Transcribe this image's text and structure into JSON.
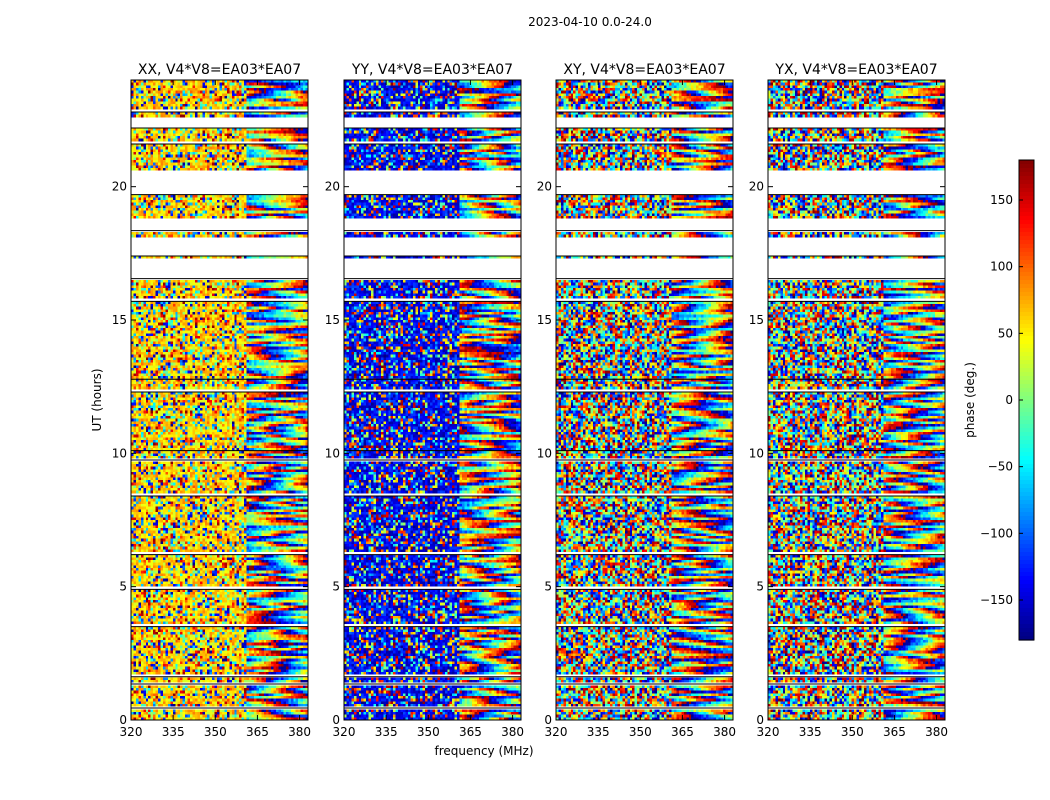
{
  "chart_data": {
    "suptitle": "2023-04-10 0.0-24.0",
    "type": "heatmap",
    "xlabel": "frequency (MHz)",
    "ylabel": "UT (hours)",
    "xlim": [
      320,
      383
    ],
    "ylim": [
      0,
      24
    ],
    "xticks": [
      "320",
      "335",
      "350",
      "365",
      "380"
    ],
    "yticks": [
      "0",
      "5",
      "10",
      "15",
      "20"
    ],
    "panels": [
      {
        "title": "XX, V4*V8=EA03*EA07",
        "bias_deg": 60
      },
      {
        "title": "YY, V4*V8=EA03*EA07",
        "bias_deg": -140
      },
      {
        "title": "XY, V4*V8=EA03*EA07",
        "bias_deg": 0
      },
      {
        "title": "YX, V4*V8=EA03*EA07",
        "bias_deg": 0
      }
    ],
    "flagged_ut_ranges": [
      [
        0.45,
        0.5
      ],
      [
        1.35,
        1.42
      ],
      [
        1.62,
        1.68
      ],
      [
        3.5,
        3.58
      ],
      [
        4.9,
        4.97
      ],
      [
        6.2,
        6.25
      ],
      [
        8.4,
        8.45
      ],
      [
        9.75,
        9.82
      ],
      [
        10.1,
        10.14
      ],
      [
        12.3,
        12.35
      ],
      [
        12.78,
        12.8
      ],
      [
        15.7,
        15.75
      ],
      [
        16.55,
        17.25
      ],
      [
        17.4,
        18.1
      ],
      [
        18.35,
        18.8
      ],
      [
        19.7,
        20.6
      ],
      [
        21.6,
        21.7
      ],
      [
        22.2,
        22.6
      ],
      [
        22.8,
        22.9
      ]
    ],
    "colorbar": {
      "label": "phase (deg.)",
      "range": [
        -180,
        180
      ],
      "ticks": [
        "150",
        "100",
        "50",
        "0",
        "−50",
        "−100",
        "−150"
      ],
      "tick_values": [
        150,
        100,
        50,
        0,
        -50,
        -100,
        -150
      ],
      "colormap": "jet"
    }
  }
}
